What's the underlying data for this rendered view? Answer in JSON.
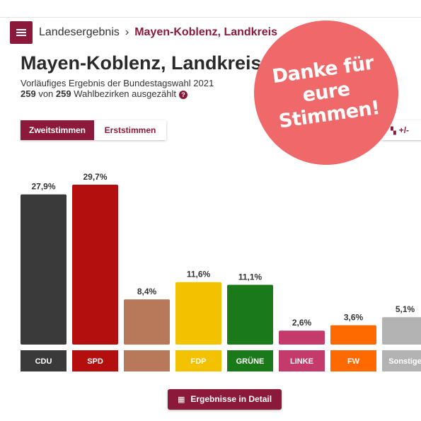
{
  "header": {
    "breadcrumb_home": "Landesergebnis",
    "breadcrumb_separator": "›",
    "breadcrumb_current": "Mayen-Koblenz, Landkreis"
  },
  "page": {
    "title": "Mayen-Koblenz, Landkreis",
    "subtitle": "Vorläufiges Ergebnis der Bundestagswahl 2021",
    "counted": "259",
    "counted_of": "von",
    "total": "259",
    "counted_suffix": "Wahlbezirken ausgezählt",
    "help_glyph": "?"
  },
  "tabs": [
    {
      "label": "Zweitstimmen",
      "active": true
    },
    {
      "label": "Erststimmen",
      "active": false
    }
  ],
  "diff_button": {
    "icon": "▚",
    "label": "+/-"
  },
  "stamp": {
    "line1": "Danke für",
    "line2": "eure Stimmen!",
    "color": "#f0696a"
  },
  "detail_button": {
    "icon": "▦",
    "label": "Ergebnisse in Detail"
  },
  "colors": {
    "accent": "#8b1a3a"
  },
  "chart_data": {
    "type": "bar",
    "unit": "%",
    "ylim": [
      0,
      29.7
    ],
    "categories": [
      "CDU",
      "SPD",
      "",
      "FDP",
      "GRÜNE",
      "LINKE",
      "FW",
      "Sonstige"
    ],
    "values": [
      27.9,
      29.7,
      8.4,
      11.6,
      11.1,
      2.6,
      3.6,
      5.1
    ],
    "value_labels": [
      "27,9%",
      "29,7%",
      "8,4%",
      "11,6%",
      "11,1%",
      "2,6%",
      "3,6%",
      "5,1%"
    ],
    "colors": [
      "#3a3a3a",
      "#b30f0f",
      "#b8785a",
      "#f2c200",
      "#1a7a1a",
      "#c43a6a",
      "#ff6a00",
      "#b3b3b3"
    ]
  }
}
